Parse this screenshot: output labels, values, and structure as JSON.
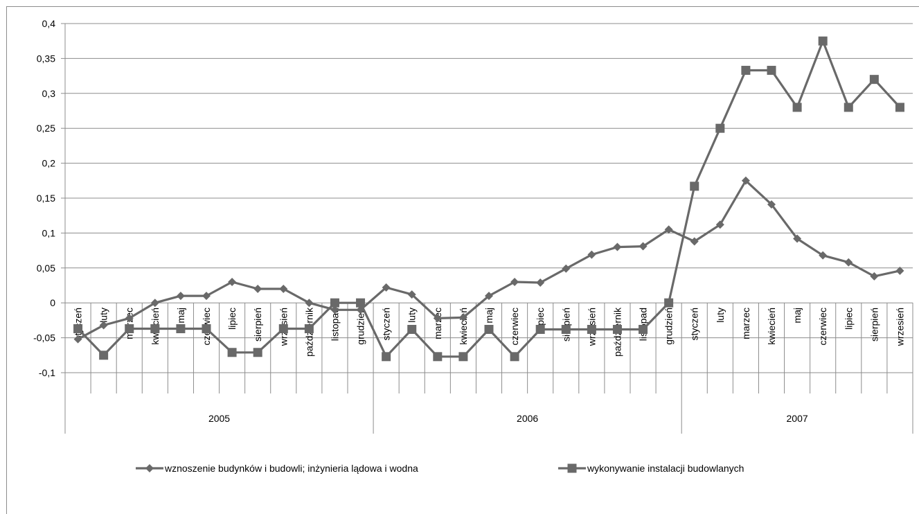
{
  "chart_data": {
    "type": "line",
    "title": "",
    "xlabel": "",
    "ylabel": "",
    "ylim": [
      -0.1,
      0.4
    ],
    "yticks": [
      -0.1,
      -0.05,
      0,
      0.05,
      0.1,
      0.15,
      0.2,
      0.25,
      0.3,
      0.35,
      0.4
    ],
    "ytick_labels": [
      "-0,1",
      "-0,05",
      "0",
      "0,05",
      "0,1",
      "0,15",
      "0,2",
      "0,25",
      "0,3",
      "0,35",
      "0,4"
    ],
    "grid": "horizontal",
    "legend_position": "bottom",
    "years": [
      {
        "label": "2005",
        "months": 12
      },
      {
        "label": "2006",
        "months": 12
      },
      {
        "label": "2007",
        "months": 9
      }
    ],
    "categories": [
      "styczeń",
      "luty",
      "marzec",
      "kwiecień",
      "maj",
      "czerwiec",
      "lipiec",
      "sierpień",
      "wrzesień",
      "październik",
      "listopad",
      "grudzień",
      "styczeń",
      "luty",
      "marzec",
      "kwiecień",
      "maj",
      "czerwiec",
      "lipiec",
      "sierpień",
      "wrzesień",
      "październik",
      "listopad",
      "grudzień",
      "styczeń",
      "luty",
      "marzec",
      "kwiecień",
      "maj",
      "czerwiec",
      "lipiec",
      "sierpień",
      "wrzesień"
    ],
    "series": [
      {
        "name": "wznoszenie budynków i  budowli; inżynieria  lądowa i wodna",
        "marker": "diamond",
        "color": "#696969",
        "values": [
          -0.052,
          -0.032,
          -0.022,
          0.0,
          0.01,
          0.01,
          0.03,
          0.02,
          0.02,
          0.0,
          -0.01,
          -0.01,
          0.022,
          0.012,
          -0.022,
          -0.021,
          0.01,
          0.03,
          0.029,
          0.049,
          0.069,
          0.08,
          0.081,
          0.105,
          0.088,
          0.112,
          0.175,
          0.141,
          0.092,
          0.068,
          0.058,
          0.038,
          0.046
        ]
      },
      {
        "name": "wykonywanie instalacji budowlanych",
        "marker": "square",
        "color": "#696969",
        "values": [
          -0.037,
          -0.075,
          -0.037,
          -0.037,
          -0.037,
          -0.037,
          -0.071,
          -0.071,
          -0.037,
          -0.037,
          0.0,
          0.0,
          -0.077,
          -0.038,
          -0.077,
          -0.077,
          -0.038,
          -0.077,
          -0.038,
          -0.038,
          -0.038,
          -0.038,
          -0.038,
          0.0,
          0.167,
          0.25,
          0.333,
          0.333,
          0.28,
          0.375,
          0.28,
          0.32,
          0.28
        ]
      }
    ]
  }
}
